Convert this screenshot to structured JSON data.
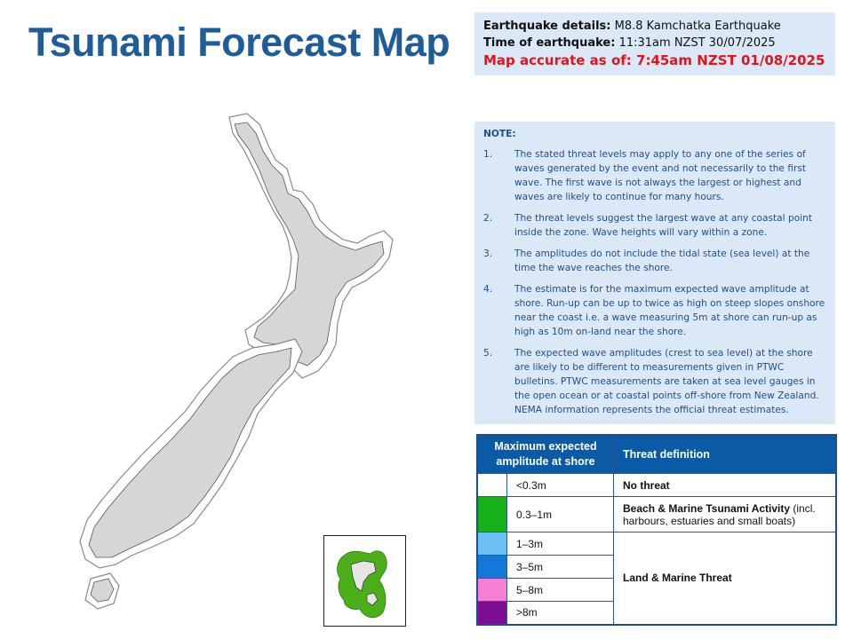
{
  "title": "Tsunami Forecast Map",
  "details": {
    "eq_label": "Earthquake details:",
    "eq_value": "M8.8 Kamchatka Earthquake",
    "time_label": "Time of earthquake:",
    "time_value": "11:31am NZST 30/07/2025",
    "accuracy": "Map accurate as of: 7:45am NZST 01/08/2025"
  },
  "note": {
    "heading": "NOTE:",
    "items": [
      {
        "num": "1.",
        "text": "The stated threat levels may apply to any one of the series of waves generated by the event and not necessarily to the first wave. The first wave is not always the largest or highest and waves are likely to continue for many hours."
      },
      {
        "num": "2.",
        "text": "The threat levels suggest the largest wave at any coastal point inside the zone. Wave heights will vary within a zone."
      },
      {
        "num": "3.",
        "text": "The amplitudes do not include the tidal state (sea level) at the time the wave reaches the shore."
      },
      {
        "num": "4.",
        "text": "The estimate is for the maximum expected wave amplitude at shore. Run-up can be up to twice as high on steep slopes onshore near the coast i.e. a wave measuring 5m at shore can run-up as high as 10m on-land near the shore."
      },
      {
        "num": "5.",
        "text": "The expected wave amplitudes (crest to sea level) at the shore are likely to be different to measurements given in PTWC bulletins. PTWC measurements are taken at sea level gauges in the open ocean or at coastal points off-shore from New Zealand. NEMA information represents the official threat estimates."
      }
    ]
  },
  "legend": {
    "col1_header": "Maximum expected amplitude at shore",
    "col2_header": "Threat definition",
    "levels": [
      {
        "amplitude": "<0.3m",
        "color": "#ffffff"
      },
      {
        "amplitude": "0.3–1m",
        "color": "#17b01b"
      },
      {
        "amplitude": "1–3m",
        "color": "#6fc0f7"
      },
      {
        "amplitude": "3–5m",
        "color": "#1479d6"
      },
      {
        "amplitude": "5–8m",
        "color": "#f77fd3"
      },
      {
        "amplitude": ">8m",
        "color": "#7d0e91"
      }
    ],
    "def_no_threat": "No threat",
    "def_beach_bold": "Beach & Marine Tsunami Activity",
    "def_beach_rest": " (incl. harbours, estuaries and small boats)",
    "def_land": "Land & Marine Threat"
  }
}
